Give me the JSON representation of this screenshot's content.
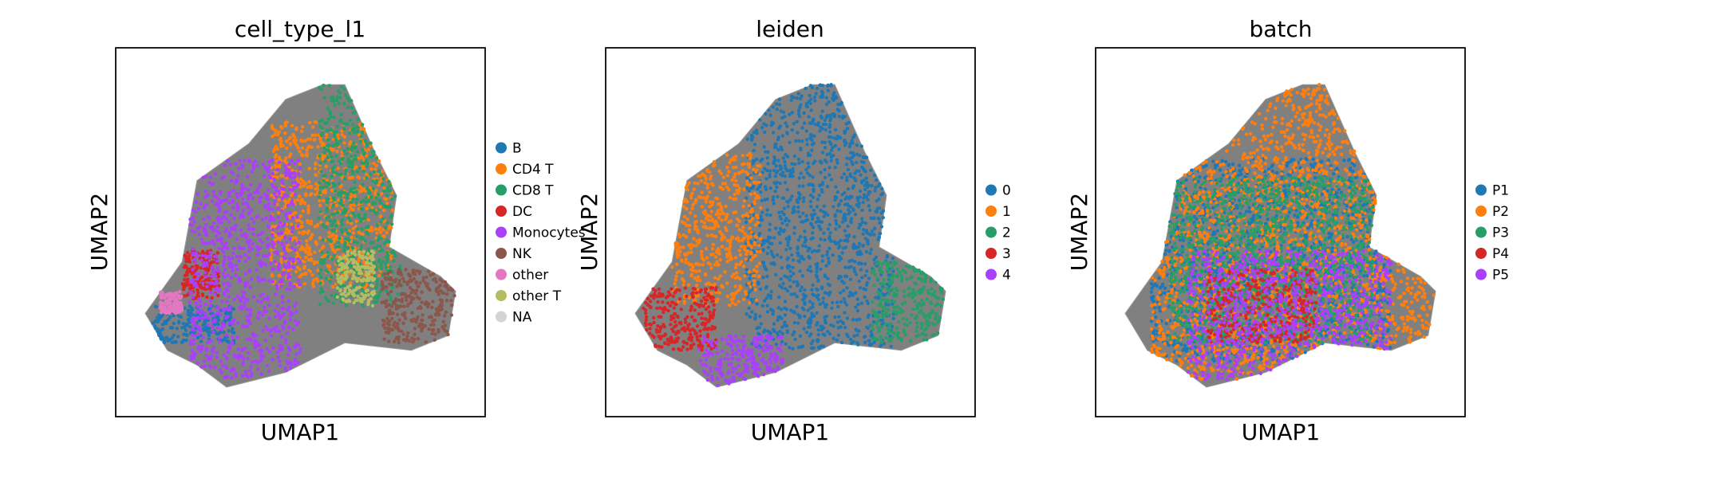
{
  "figure": {
    "panels": [
      {
        "title": "cell_type_l1",
        "xlabel": "UMAP1",
        "ylabel": "UMAP2",
        "legend": [
          {
            "label": "B",
            "color": "#1f77b4"
          },
          {
            "label": "CD4 T",
            "color": "#ff7f0e"
          },
          {
            "label": "CD8 T",
            "color": "#279e68"
          },
          {
            "label": "DC",
            "color": "#d62728"
          },
          {
            "label": "Monocytes",
            "color": "#aa40fc"
          },
          {
            "label": "NK",
            "color": "#8c564b"
          },
          {
            "label": "other",
            "color": "#e377c2"
          },
          {
            "label": "other T",
            "color": "#b5bd61"
          },
          {
            "label": "NA",
            "color": "#d3d3d3"
          }
        ]
      },
      {
        "title": "leiden",
        "xlabel": "UMAP1",
        "ylabel": "UMAP2",
        "legend": [
          {
            "label": "0",
            "color": "#1f77b4"
          },
          {
            "label": "1",
            "color": "#ff7f0e"
          },
          {
            "label": "2",
            "color": "#279e68"
          },
          {
            "label": "3",
            "color": "#d62728"
          },
          {
            "label": "4",
            "color": "#aa40fc"
          }
        ]
      },
      {
        "title": "batch",
        "xlabel": "UMAP1",
        "ylabel": "UMAP2",
        "legend": [
          {
            "label": "P1",
            "color": "#1f77b4"
          },
          {
            "label": "P2",
            "color": "#ff7f0e"
          },
          {
            "label": "P3",
            "color": "#279e68"
          },
          {
            "label": "P4",
            "color": "#d62728"
          },
          {
            "label": "P5",
            "color": "#aa40fc"
          }
        ]
      }
    ],
    "background_color": "#808080"
  },
  "chart_data": [
    {
      "type": "scatter",
      "title": "cell_type_l1",
      "xlabel": "UMAP1",
      "ylabel": "UMAP2",
      "grid": false,
      "ticks": false,
      "legend_placement": "right",
      "series": [
        {
          "name": "B",
          "color": "#1f77b4",
          "region": [
            [
              0.1,
              0.7
            ],
            [
              0.32,
              0.8
            ]
          ]
        },
        {
          "name": "CD4 T",
          "color": "#ff7f0e",
          "region": [
            [
              0.42,
              0.2
            ],
            [
              0.75,
              0.65
            ]
          ]
        },
        {
          "name": "CD8 T",
          "color": "#279e68",
          "region": [
            [
              0.55,
              0.1
            ],
            [
              0.78,
              0.7
            ]
          ]
        },
        {
          "name": "DC",
          "color": "#d62728",
          "region": [
            [
              0.18,
              0.55
            ],
            [
              0.28,
              0.68
            ]
          ]
        },
        {
          "name": "Monocytes",
          "color": "#aa40fc",
          "region": [
            [
              0.2,
              0.3
            ],
            [
              0.5,
              0.9
            ]
          ]
        },
        {
          "name": "NK",
          "color": "#8c564b",
          "region": [
            [
              0.72,
              0.6
            ],
            [
              0.92,
              0.8
            ]
          ]
        },
        {
          "name": "other",
          "color": "#e377c2",
          "region": [
            [
              0.12,
              0.66
            ],
            [
              0.18,
              0.72
            ]
          ]
        },
        {
          "name": "other T",
          "color": "#b5bd61",
          "region": [
            [
              0.6,
              0.55
            ],
            [
              0.7,
              0.7
            ]
          ]
        },
        {
          "name": "NA",
          "color": "#d3d3d3",
          "region": []
        }
      ]
    },
    {
      "type": "scatter",
      "title": "leiden",
      "xlabel": "UMAP1",
      "ylabel": "UMAP2",
      "grid": false,
      "ticks": false,
      "legend_placement": "right",
      "series": [
        {
          "name": "0",
          "color": "#1f77b4",
          "region": [
            [
              0.38,
              0.1
            ],
            [
              0.78,
              0.82
            ]
          ]
        },
        {
          "name": "1",
          "color": "#ff7f0e",
          "region": [
            [
              0.18,
              0.28
            ],
            [
              0.42,
              0.7
            ]
          ]
        },
        {
          "name": "2",
          "color": "#279e68",
          "region": [
            [
              0.72,
              0.58
            ],
            [
              0.92,
              0.8
            ]
          ]
        },
        {
          "name": "3",
          "color": "#d62728",
          "region": [
            [
              0.1,
              0.65
            ],
            [
              0.3,
              0.82
            ]
          ]
        },
        {
          "name": "4",
          "color": "#aa40fc",
          "region": [
            [
              0.25,
              0.78
            ],
            [
              0.48,
              0.92
            ]
          ]
        }
      ]
    },
    {
      "type": "scatter",
      "title": "batch",
      "xlabel": "UMAP1",
      "ylabel": "UMAP2",
      "grid": false,
      "ticks": false,
      "legend_placement": "right",
      "series": [
        {
          "name": "P1",
          "color": "#1f77b4",
          "region": [
            [
              0.15,
              0.3
            ],
            [
              0.8,
              0.85
            ]
          ]
        },
        {
          "name": "P2",
          "color": "#ff7f0e",
          "region": [
            [
              0.15,
              0.1
            ],
            [
              0.92,
              0.9
            ]
          ]
        },
        {
          "name": "P3",
          "color": "#279e68",
          "region": [
            [
              0.2,
              0.35
            ],
            [
              0.75,
              0.8
            ]
          ]
        },
        {
          "name": "P4",
          "color": "#d62728",
          "region": [
            [
              0.3,
              0.6
            ],
            [
              0.6,
              0.8
            ]
          ]
        },
        {
          "name": "P5",
          "color": "#aa40fc",
          "region": [
            [
              0.25,
              0.55
            ],
            [
              0.8,
              0.9
            ]
          ]
        }
      ]
    }
  ]
}
